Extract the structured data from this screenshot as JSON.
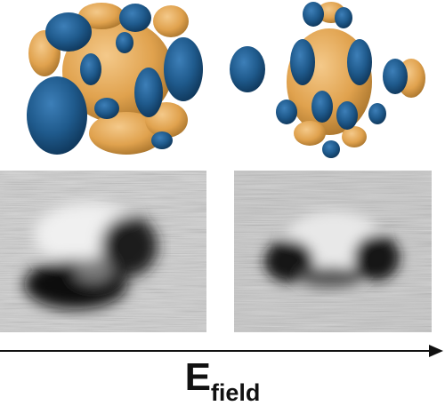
{
  "figure": {
    "axis_label_main": "E",
    "axis_label_sub": "field",
    "colors": {
      "orbital_blue": "#1f5a8c",
      "orbital_gold": "#e0a24e",
      "stm_light": "#e6e6e6",
      "stm_dark": "#141414",
      "axis": "#111111"
    },
    "panels": {
      "top_left": "molecular-orbital-isosurface",
      "top_right": "molecular-orbital-isosurface",
      "bottom_left": "stm-image",
      "bottom_right": "stm-image"
    },
    "arrow_icon": "right-arrow-icon"
  }
}
